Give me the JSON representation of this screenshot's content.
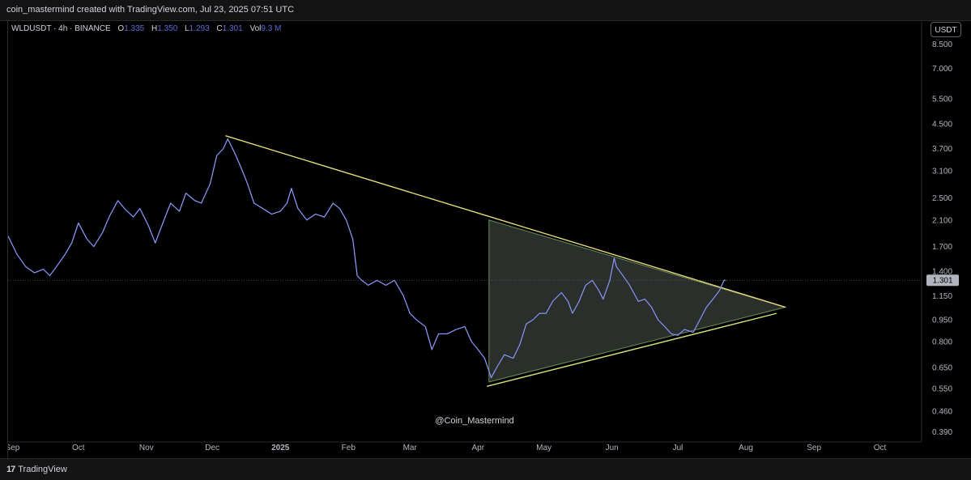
{
  "header": {
    "attribution": "coin_mastermind created with TradingView.com, Jul 23, 2025 07:51 UTC"
  },
  "legend": {
    "symbol": "WLDUSDT · 4h · BINANCE",
    "open_label": "O",
    "open": "1.335",
    "high_label": "H",
    "high": "1.350",
    "low_label": "L",
    "low": "1.293",
    "close_label": "C",
    "close": "1.301",
    "vol_label": "Vol",
    "vol": "9.3 M"
  },
  "currency_button": "USDT",
  "footer": {
    "brand": "TradingView",
    "brand_mark": "17"
  },
  "chart_data": {
    "type": "line",
    "scale": "log",
    "symbol": "WLDUSDT",
    "interval": "4h",
    "exchange": "BINANCE",
    "watermark": "@Coin_Mastermind",
    "y_ticks": [
      "8.500",
      "7.000",
      "5.500",
      "4.500",
      "3.700",
      "3.100",
      "2.500",
      "2.100",
      "1.700",
      "1.400",
      "1.150",
      "0.950",
      "0.800",
      "0.650",
      "0.550",
      "0.460",
      "0.390"
    ],
    "y_tick_values": [
      8.5,
      7.0,
      5.5,
      4.5,
      3.7,
      3.1,
      2.5,
      2.1,
      1.7,
      1.4,
      1.15,
      0.95,
      0.8,
      0.65,
      0.55,
      0.46,
      0.39
    ],
    "x_ticks": [
      "Sep",
      "Oct",
      "Nov",
      "Dec",
      "2025",
      "Feb",
      "Mar",
      "Apr",
      "May",
      "Jun",
      "Jul",
      "Aug",
      "Sep",
      "Oct"
    ],
    "x_tick_dates": [
      "2024-09-01",
      "2024-10-01",
      "2024-11-01",
      "2024-12-01",
      "2025-01-01",
      "2025-02-01",
      "2025-03-01",
      "2025-04-01",
      "2025-05-01",
      "2025-06-01",
      "2025-07-01",
      "2025-08-01",
      "2025-09-01",
      "2025-10-01"
    ],
    "x_range": [
      "2024-08-30",
      "2025-10-20"
    ],
    "ylim": [
      0.36,
      10.2
    ],
    "last_price": 1.301,
    "last_price_label": "1.301",
    "series": [
      {
        "color": "#5b6bd6",
        "points": [
          [
            "2024-08-30",
            1.85
          ],
          [
            "2024-09-03",
            1.6
          ],
          [
            "2024-09-07",
            1.45
          ],
          [
            "2024-09-11",
            1.38
          ],
          [
            "2024-09-15",
            1.42
          ],
          [
            "2024-09-18",
            1.35
          ],
          [
            "2024-09-21",
            1.45
          ],
          [
            "2024-09-25",
            1.6
          ],
          [
            "2024-09-28",
            1.75
          ],
          [
            "2024-10-01",
            2.05
          ],
          [
            "2024-10-05",
            1.8
          ],
          [
            "2024-10-08",
            1.7
          ],
          [
            "2024-10-12",
            1.9
          ],
          [
            "2024-10-15",
            2.15
          ],
          [
            "2024-10-19",
            2.45
          ],
          [
            "2024-10-22",
            2.3
          ],
          [
            "2024-10-26",
            2.15
          ],
          [
            "2024-10-29",
            2.3
          ],
          [
            "2024-11-02",
            2.0
          ],
          [
            "2024-11-05",
            1.75
          ],
          [
            "2024-11-09",
            2.1
          ],
          [
            "2024-11-12",
            2.4
          ],
          [
            "2024-11-16",
            2.25
          ],
          [
            "2024-11-19",
            2.6
          ],
          [
            "2024-11-23",
            2.45
          ],
          [
            "2024-11-26",
            2.4
          ],
          [
            "2024-11-30",
            2.8
          ],
          [
            "2024-12-03",
            3.5
          ],
          [
            "2024-12-06",
            3.7
          ],
          [
            "2024-12-08",
            4.0
          ],
          [
            "2024-12-11",
            3.6
          ],
          [
            "2024-12-14",
            3.2
          ],
          [
            "2024-12-17",
            2.8
          ],
          [
            "2024-12-20",
            2.4
          ],
          [
            "2024-12-24",
            2.3
          ],
          [
            "2024-12-28",
            2.2
          ],
          [
            "2025-01-01",
            2.25
          ],
          [
            "2025-01-04",
            2.4
          ],
          [
            "2025-01-06",
            2.7
          ],
          [
            "2025-01-09",
            2.3
          ],
          [
            "2025-01-13",
            2.1
          ],
          [
            "2025-01-17",
            2.2
          ],
          [
            "2025-01-21",
            2.15
          ],
          [
            "2025-01-25",
            2.4
          ],
          [
            "2025-01-28",
            2.3
          ],
          [
            "2025-01-31",
            2.1
          ],
          [
            "2025-02-03",
            1.8
          ],
          [
            "2025-02-05",
            1.35
          ],
          [
            "2025-02-07",
            1.3
          ],
          [
            "2025-02-10",
            1.25
          ],
          [
            "2025-02-14",
            1.3
          ],
          [
            "2025-02-18",
            1.25
          ],
          [
            "2025-02-22",
            1.3
          ],
          [
            "2025-02-26",
            1.15
          ],
          [
            "2025-03-01",
            1.0
          ],
          [
            "2025-03-04",
            0.95
          ],
          [
            "2025-03-08",
            0.9
          ],
          [
            "2025-03-11",
            0.75
          ],
          [
            "2025-03-14",
            0.85
          ],
          [
            "2025-03-18",
            0.85
          ],
          [
            "2025-03-22",
            0.88
          ],
          [
            "2025-03-26",
            0.9
          ],
          [
            "2025-03-29",
            0.8
          ],
          [
            "2025-04-01",
            0.75
          ],
          [
            "2025-04-04",
            0.7
          ],
          [
            "2025-04-07",
            0.6
          ],
          [
            "2025-04-10",
            0.66
          ],
          [
            "2025-04-13",
            0.72
          ],
          [
            "2025-04-17",
            0.7
          ],
          [
            "2025-04-20",
            0.78
          ],
          [
            "2025-04-23",
            0.92
          ],
          [
            "2025-04-26",
            0.95
          ],
          [
            "2025-04-29",
            1.0
          ],
          [
            "2025-05-02",
            1.0
          ],
          [
            "2025-05-05",
            1.1
          ],
          [
            "2025-05-09",
            1.18
          ],
          [
            "2025-05-12",
            1.1
          ],
          [
            "2025-05-14",
            1.0
          ],
          [
            "2025-05-17",
            1.1
          ],
          [
            "2025-05-20",
            1.25
          ],
          [
            "2025-05-23",
            1.3
          ],
          [
            "2025-05-26",
            1.2
          ],
          [
            "2025-05-28",
            1.12
          ],
          [
            "2025-05-31",
            1.3
          ],
          [
            "2025-06-02",
            1.55
          ],
          [
            "2025-06-03",
            1.45
          ],
          [
            "2025-06-06",
            1.35
          ],
          [
            "2025-06-09",
            1.25
          ],
          [
            "2025-06-13",
            1.1
          ],
          [
            "2025-06-16",
            1.12
          ],
          [
            "2025-06-19",
            1.05
          ],
          [
            "2025-06-22",
            0.95
          ],
          [
            "2025-06-25",
            0.9
          ],
          [
            "2025-06-28",
            0.85
          ],
          [
            "2025-07-01",
            0.84
          ],
          [
            "2025-07-04",
            0.88
          ],
          [
            "2025-07-08",
            0.86
          ],
          [
            "2025-07-11",
            0.95
          ],
          [
            "2025-07-14",
            1.05
          ],
          [
            "2025-07-17",
            1.12
          ],
          [
            "2025-07-20",
            1.2
          ],
          [
            "2025-07-22",
            1.3
          ],
          [
            "2025-07-23",
            1.301
          ]
        ]
      }
    ],
    "annotations": {
      "upper_trendline": {
        "from": [
          "2024-12-07",
          4.1
        ],
        "to": [
          "2025-08-19",
          1.05
        ],
        "color": "#e6d97a"
      },
      "triangle": {
        "points": [
          [
            "2025-04-06",
            2.1
          ],
          [
            "2025-04-06",
            0.58
          ],
          [
            "2025-08-19",
            1.05
          ]
        ],
        "stroke": "#6b8f5a",
        "fill": "#3a3f3a"
      },
      "lower_trendline": {
        "from": [
          "2025-04-05",
          0.56
        ],
        "to": [
          "2025-08-15",
          1.0
        ],
        "color": "#d7e07a"
      }
    }
  }
}
